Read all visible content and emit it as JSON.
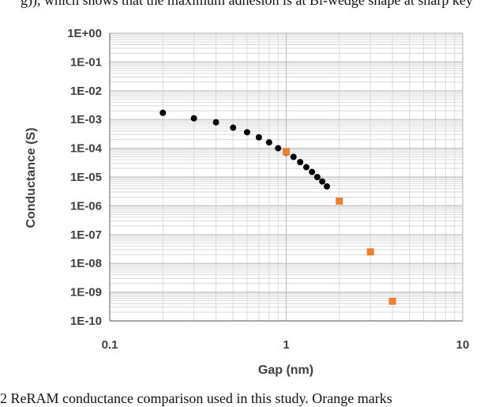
{
  "page": {
    "top_text": "g)), which shows that the maximum adhesion is at Bi-wedge shape at sharp key",
    "bottom_text": "2 ReRAM conductance comparison used in this study. Orange marks"
  },
  "colors": {
    "series_black": "#000000",
    "series_orange": "#ED7D31",
    "grid_major": "#bfbfbf",
    "grid_minor": "#d9d9d9",
    "axis": "#808080"
  },
  "chart_data": {
    "type": "scatter",
    "title": "",
    "xlabel": "Gap (nm)",
    "ylabel": "Conductance (S)",
    "xscale": "log",
    "yscale": "log",
    "xlim": [
      0.1,
      10
    ],
    "ylim": [
      1e-10,
      1
    ],
    "grid": "major and minor",
    "legend": "none",
    "x_tick_labels": [
      "0.1",
      "1",
      "10"
    ],
    "y_tick_labels": [
      "1E+00",
      "1E-01",
      "1E-02",
      "1E-03",
      "1E-04",
      "1E-05",
      "1E-06",
      "1E-07",
      "1E-08",
      "1E-09",
      "1E-10"
    ],
    "series": [
      {
        "marker": "circle",
        "color": "#000000",
        "points": [
          [
            0.2,
            0.0017
          ],
          [
            0.3,
            0.0011
          ],
          [
            0.4,
            0.0008
          ],
          [
            0.5,
            0.00052
          ],
          [
            0.6,
            0.00036
          ],
          [
            0.7,
            0.00024
          ],
          [
            0.8,
            0.00016
          ],
          [
            0.9,
            0.0001
          ],
          [
            1.0,
            7e-05
          ],
          [
            1.1,
            5e-05
          ],
          [
            1.2,
            3.3e-05
          ],
          [
            1.3,
            2.2e-05
          ],
          [
            1.4,
            1.5e-05
          ],
          [
            1.5,
            1e-05
          ],
          [
            1.6,
            7e-06
          ],
          [
            1.7,
            4.7e-06
          ]
        ]
      },
      {
        "marker": "square",
        "color": "#ED7D31",
        "points": [
          [
            1.0,
            7.5e-05
          ],
          [
            2.0,
            1.45e-06
          ],
          [
            3.0,
            2.5e-08
          ],
          [
            4.0,
            4.8e-10
          ]
        ]
      }
    ]
  }
}
